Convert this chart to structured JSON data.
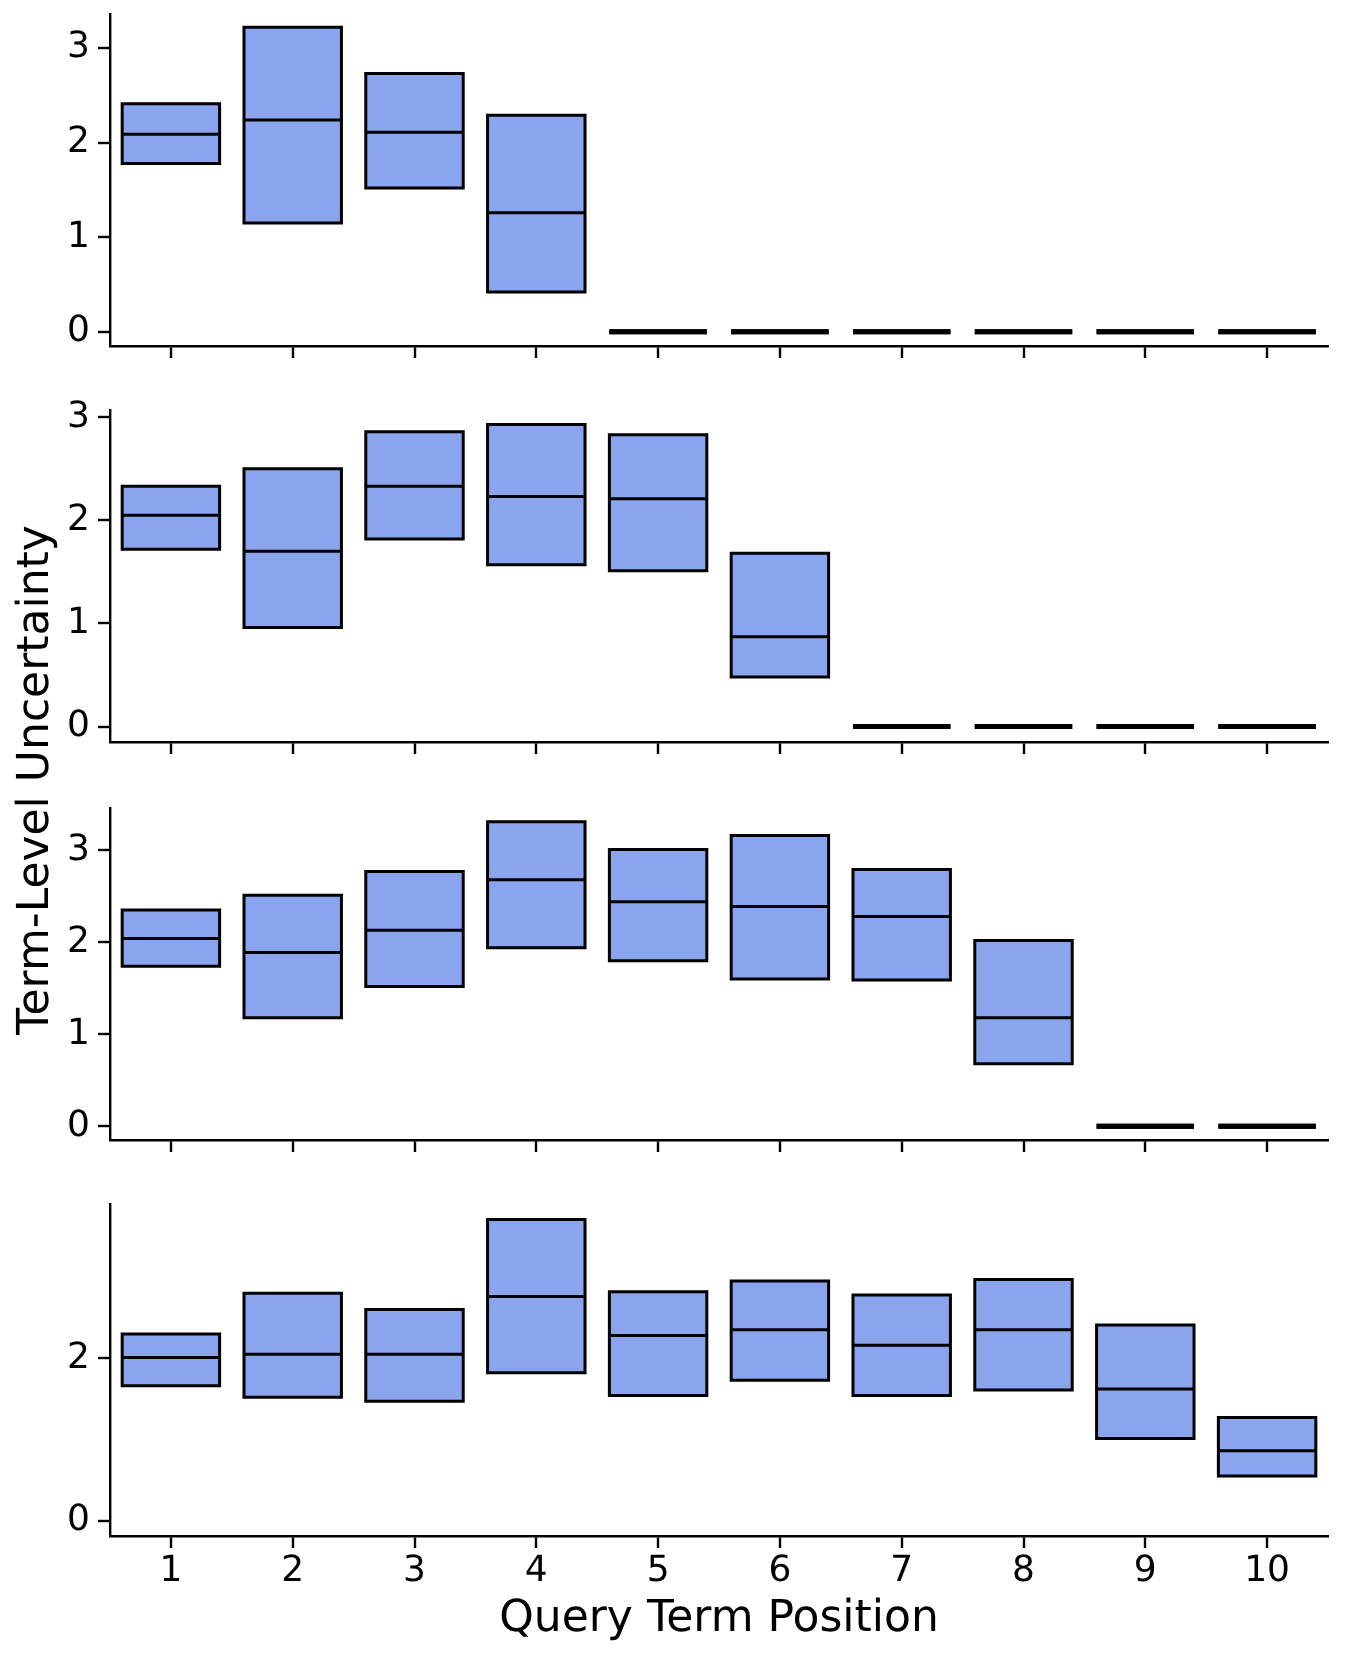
{
  "chart_data": [
    {
      "type": "box",
      "categories": [
        "1",
        "2",
        "3",
        "4",
        "5",
        "6",
        "7",
        "8",
        "9",
        "10"
      ],
      "colors": [
        "#8aa4ee",
        "#8aa4ee",
        "#8aa4ee",
        "#8aa4ee",
        "#000000",
        "#000000",
        "#000000",
        "#000000",
        "#000000",
        "#000000"
      ],
      "ylim": [
        -0.15,
        3.36
      ],
      "yticks": [
        0,
        1,
        2,
        3
      ],
      "tick_labels": "y",
      "boxes": [
        {
          "low": 1.78,
          "q1": 1.78,
          "median": 2.09,
          "q3": 2.41,
          "high": 2.41
        },
        {
          "low": 1.15,
          "q1": 1.15,
          "median": 2.24,
          "q3": 3.22,
          "high": 3.22
        },
        {
          "low": 1.52,
          "q1": 1.52,
          "median": 2.11,
          "q3": 2.73,
          "high": 2.73
        },
        {
          "low": 0.42,
          "q1": 0.42,
          "median": 1.26,
          "q3": 2.29,
          "high": 2.29
        },
        {
          "low": 0,
          "q1": 0,
          "median": 0,
          "q3": 0,
          "high": 0
        },
        {
          "low": 0,
          "q1": 0,
          "median": 0,
          "q3": 0,
          "high": 0
        },
        {
          "low": 0,
          "q1": 0,
          "median": 0,
          "q3": 0,
          "high": 0
        },
        {
          "low": 0,
          "q1": 0,
          "median": 0,
          "q3": 0,
          "high": 0
        },
        {
          "low": 0,
          "q1": 0,
          "median": 0,
          "q3": 0,
          "high": 0
        },
        {
          "low": 0,
          "q1": 0,
          "median": 0,
          "q3": 0,
          "high": 0
        }
      ]
    },
    {
      "type": "box",
      "categories": [
        "1",
        "2",
        "3",
        "4",
        "5",
        "6",
        "7",
        "8",
        "9",
        "10"
      ],
      "colors": [
        "#8aa4ee",
        "#8aa4ee",
        "#8aa4ee",
        "#8aa4ee",
        "#8aa4ee",
        "#8aa4ee",
        "#000000",
        "#000000",
        "#000000",
        "#000000"
      ],
      "ylim": [
        -0.15,
        3.07
      ],
      "yticks": [
        0,
        1,
        2,
        3
      ],
      "tick_labels": "y",
      "ylabel": "Term-Level Uncertainty",
      "boxes": [
        {
          "low": 1.72,
          "q1": 1.72,
          "median": 2.05,
          "q3": 2.33,
          "high": 2.33
        },
        {
          "low": 0.96,
          "q1": 0.96,
          "median": 1.7,
          "q3": 2.5,
          "high": 2.5
        },
        {
          "low": 1.82,
          "q1": 1.82,
          "median": 2.33,
          "q3": 2.86,
          "high": 2.86
        },
        {
          "low": 1.57,
          "q1": 1.57,
          "median": 2.23,
          "q3": 2.93,
          "high": 2.93
        },
        {
          "low": 1.51,
          "q1": 1.51,
          "median": 2.21,
          "q3": 2.83,
          "high": 2.83
        },
        {
          "low": 0.48,
          "q1": 0.48,
          "median": 0.87,
          "q3": 1.68,
          "high": 1.68
        },
        {
          "low": 0,
          "q1": 0,
          "median": 0,
          "q3": 0,
          "high": 0
        },
        {
          "low": 0,
          "q1": 0,
          "median": 0,
          "q3": 0,
          "high": 0
        },
        {
          "low": 0,
          "q1": 0,
          "median": 0,
          "q3": 0,
          "high": 0
        },
        {
          "low": 0,
          "q1": 0,
          "median": 0,
          "q3": 0,
          "high": 0
        }
      ]
    },
    {
      "type": "box",
      "categories": [
        "1",
        "2",
        "3",
        "4",
        "5",
        "6",
        "7",
        "8",
        "9",
        "10"
      ],
      "colors": [
        "#8aa4ee",
        "#8aa4ee",
        "#8aa4ee",
        "#8aa4ee",
        "#8aa4ee",
        "#8aa4ee",
        "#8aa4ee",
        "#8aa4ee",
        "#000000",
        "#000000"
      ],
      "ylim": [
        -0.15,
        3.46
      ],
      "yticks": [
        0,
        1,
        2,
        3
      ],
      "tick_labels": "y",
      "boxes": [
        {
          "low": 1.74,
          "q1": 1.74,
          "median": 2.04,
          "q3": 2.35,
          "high": 2.35
        },
        {
          "low": 1.18,
          "q1": 1.18,
          "median": 1.89,
          "q3": 2.51,
          "high": 2.51
        },
        {
          "low": 1.52,
          "q1": 1.52,
          "median": 2.13,
          "q3": 2.77,
          "high": 2.77
        },
        {
          "low": 1.94,
          "q1": 1.94,
          "median": 2.68,
          "q3": 3.31,
          "high": 3.31
        },
        {
          "low": 1.8,
          "q1": 1.8,
          "median": 2.44,
          "q3": 3.01,
          "high": 3.01
        },
        {
          "low": 1.6,
          "q1": 1.6,
          "median": 2.39,
          "q3": 3.16,
          "high": 3.16
        },
        {
          "low": 1.59,
          "q1": 1.59,
          "median": 2.28,
          "q3": 2.79,
          "high": 2.79
        },
        {
          "low": 0.68,
          "q1": 0.68,
          "median": 1.18,
          "q3": 2.02,
          "high": 2.02
        },
        {
          "low": 0,
          "q1": 0,
          "median": 0,
          "q3": 0,
          "high": 0
        },
        {
          "low": 0,
          "q1": 0,
          "median": 0,
          "q3": 0,
          "high": 0
        }
      ]
    },
    {
      "type": "box",
      "categories": [
        "1",
        "2",
        "3",
        "4",
        "5",
        "6",
        "7",
        "8",
        "9",
        "10"
      ],
      "colors": [
        "#8aa4ee",
        "#8aa4ee",
        "#8aa4ee",
        "#8aa4ee",
        "#8aa4ee",
        "#8aa4ee",
        "#8aa4ee",
        "#8aa4ee",
        "#8aa4ee",
        "#8aa4ee"
      ],
      "ylim": [
        -0.19,
        3.9
      ],
      "yticks": [
        0,
        2
      ],
      "xlabel": "Query Term Position",
      "boxes": [
        {
          "low": 1.66,
          "q1": 1.66,
          "median": 2.01,
          "q3": 2.3,
          "high": 2.3
        },
        {
          "low": 1.52,
          "q1": 1.52,
          "median": 2.05,
          "q3": 2.8,
          "high": 2.8
        },
        {
          "low": 1.47,
          "q1": 1.47,
          "median": 2.05,
          "q3": 2.6,
          "high": 2.6
        },
        {
          "low": 1.82,
          "q1": 1.82,
          "median": 2.76,
          "q3": 3.71,
          "high": 3.71
        },
        {
          "low": 1.54,
          "q1": 1.54,
          "median": 2.28,
          "q3": 2.82,
          "high": 2.82
        },
        {
          "low": 1.73,
          "q1": 1.73,
          "median": 2.35,
          "q3": 2.95,
          "high": 2.95
        },
        {
          "low": 1.54,
          "q1": 1.54,
          "median": 2.16,
          "q3": 2.78,
          "high": 2.78
        },
        {
          "low": 1.61,
          "q1": 1.61,
          "median": 2.35,
          "q3": 2.97,
          "high": 2.97
        },
        {
          "low": 1.01,
          "q1": 1.01,
          "median": 1.62,
          "q3": 2.41,
          "high": 2.41
        },
        {
          "low": 0.55,
          "q1": 0.55,
          "median": 0.86,
          "q3": 1.27,
          "high": 1.27
        }
      ]
    }
  ]
}
